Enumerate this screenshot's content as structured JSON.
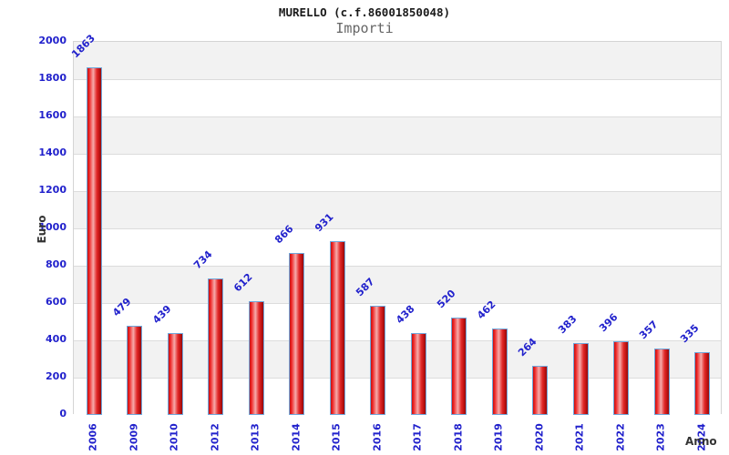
{
  "header": {
    "title": "MURELLO (c.f.86001850048)",
    "subtitle": "Importi"
  },
  "chart_data": {
    "type": "bar",
    "title": "MURELLO (c.f.86001850048)",
    "subtitle": "Importi",
    "xlabel": "Anno",
    "ylabel": "Euro",
    "categories": [
      "2006",
      "2009",
      "2010",
      "2012",
      "2013",
      "2014",
      "2015",
      "2016",
      "2017",
      "2018",
      "2019",
      "2020",
      "2021",
      "2022",
      "2023",
      "2024"
    ],
    "values": [
      1863,
      479,
      439,
      734,
      612,
      866,
      931,
      587,
      438,
      520,
      462,
      264,
      383,
      396,
      357,
      335
    ],
    "ylim": [
      0,
      2000
    ],
    "ytick_step": 200,
    "grid": true,
    "legend": "none",
    "colors": {
      "blue_text": "#2121cc",
      "axis_title_text": "#333333",
      "title_text": "#1a1a1a",
      "subtitle_text": "#666666",
      "band_gray": "#f2f2f2",
      "band_white": "#ffffff",
      "gridline": "#dcdcdc",
      "plot_border": "#d4d4d4",
      "bar_border": "#6fa8dc",
      "bar_gradient": [
        {
          "color": "#c01414",
          "pos": 0
        },
        {
          "color": "#ee2222",
          "pos": 12
        },
        {
          "color": "#f6abab",
          "pos": 42
        },
        {
          "color": "#e22a2a",
          "pos": 68
        },
        {
          "color": "#c21414",
          "pos": 85
        },
        {
          "color": "#930b0b",
          "pos": 100
        }
      ]
    }
  }
}
